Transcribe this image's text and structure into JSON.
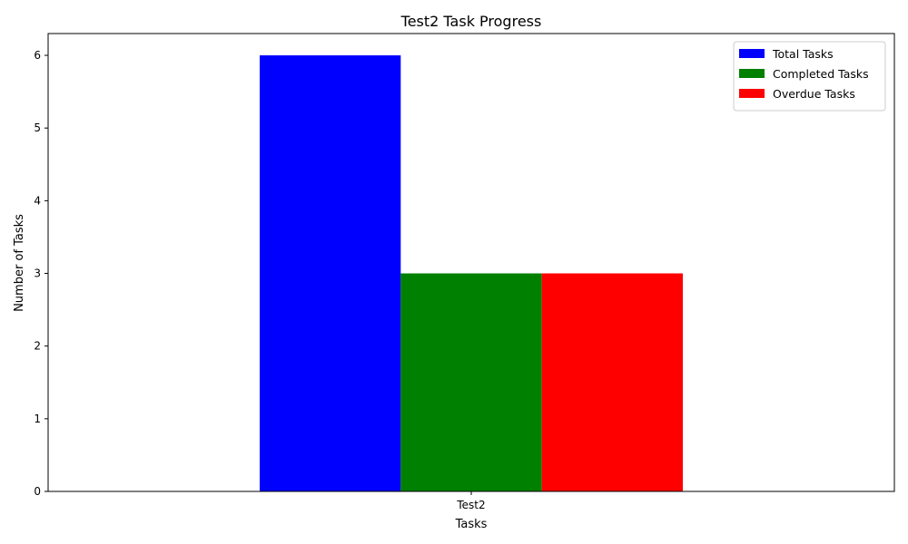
{
  "chart_data": {
    "type": "bar",
    "title": "Test2 Task Progress",
    "xlabel": "Tasks",
    "ylabel": "Number of Tasks",
    "categories": [
      "Test2"
    ],
    "series": [
      {
        "name": "Total Tasks",
        "values": [
          6
        ],
        "color": "#0000ff"
      },
      {
        "name": "Completed Tasks",
        "values": [
          3
        ],
        "color": "#008000"
      },
      {
        "name": "Overdue Tasks",
        "values": [
          3
        ],
        "color": "#ff0000"
      }
    ],
    "ylim": [
      0,
      6.3
    ],
    "yticks": [
      0,
      1,
      2,
      3,
      4,
      5,
      6
    ],
    "grid": false,
    "legend": "top-right"
  }
}
